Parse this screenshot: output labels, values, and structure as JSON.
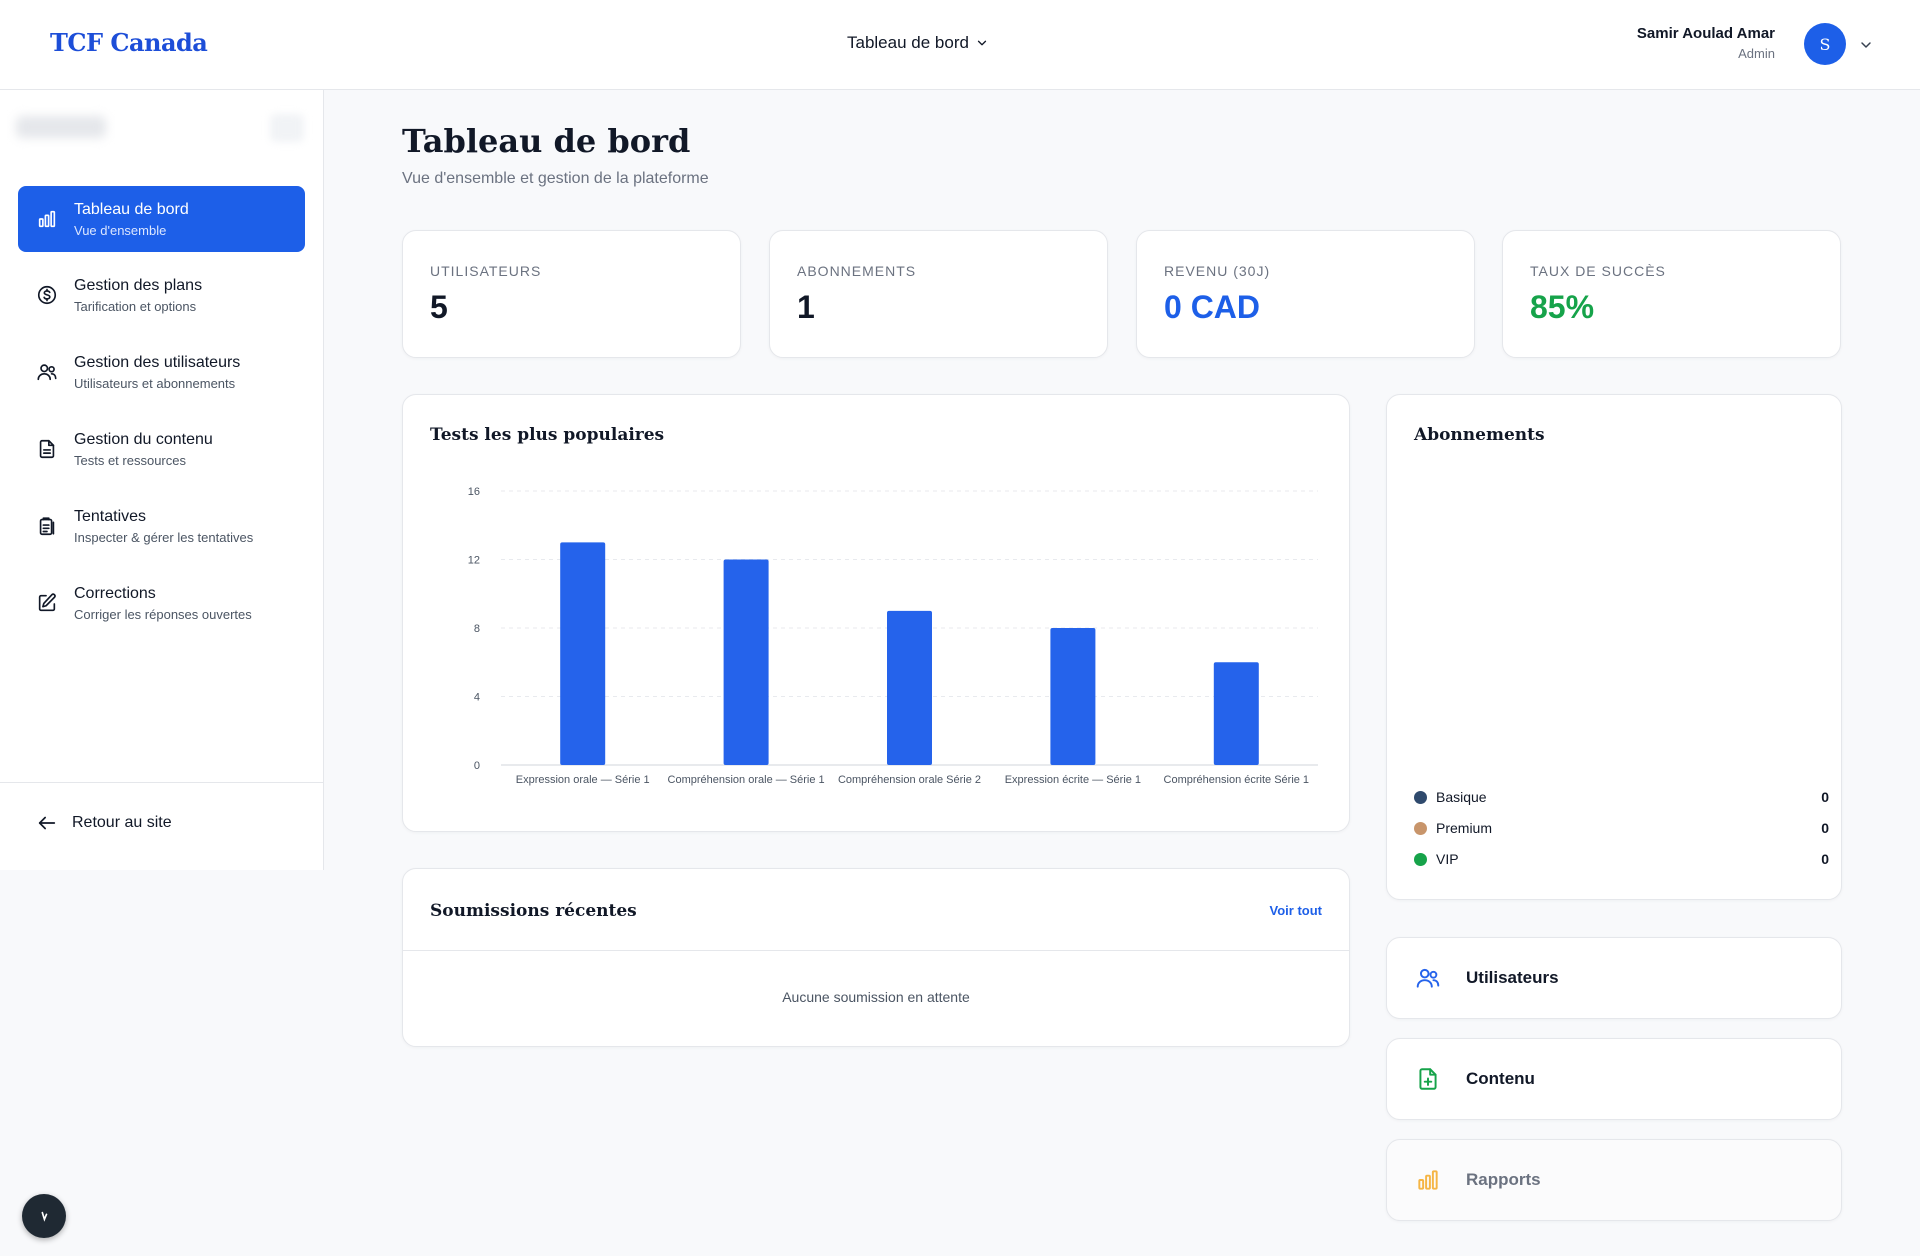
{
  "header": {
    "brand": "TCF Canada",
    "nav_label": "Tableau de bord",
    "user_name": "Samir Aoulad Amar",
    "user_role": "Admin",
    "avatar_initial": "S"
  },
  "sidebar": {
    "items": [
      {
        "title": "Tableau de bord",
        "subtitle": "Vue d'ensemble",
        "icon": "bar-chart-icon",
        "active": true
      },
      {
        "title": "Gestion des plans",
        "subtitle": "Tarification et options",
        "icon": "dollar-circle-icon",
        "active": false
      },
      {
        "title": "Gestion des utilisateurs",
        "subtitle": "Utilisateurs et abonnements",
        "icon": "users-icon",
        "active": false
      },
      {
        "title": "Gestion du contenu",
        "subtitle": "Tests et ressources",
        "icon": "document-icon",
        "active": false
      },
      {
        "title": "Tentatives",
        "subtitle": "Inspecter & gérer les tentatives",
        "icon": "clipboard-icon",
        "active": false
      },
      {
        "title": "Corrections",
        "subtitle": "Corriger les réponses ouvertes",
        "icon": "edit-icon",
        "active": false
      }
    ],
    "back_label": "Retour au site"
  },
  "page": {
    "title": "Tableau de bord",
    "subtitle": "Vue d'ensemble et gestion de la plateforme"
  },
  "stats": [
    {
      "label": "UTILISATEURS",
      "value": "5",
      "color": "#111827"
    },
    {
      "label": "ABONNEMENTS",
      "value": "1",
      "color": "#111827"
    },
    {
      "label": "REVENU (30J)",
      "value": "0 CAD",
      "color": "#1d5fe8"
    },
    {
      "label": "TAUX DE SUCCÈS",
      "value": "85%",
      "color": "#16a34a"
    }
  ],
  "popular_tests": {
    "title": "Tests les plus populaires"
  },
  "chart_data": {
    "type": "bar",
    "categories": [
      "Expression orale — Série 1",
      "Compréhension orale — Série 1",
      "Compréhension orale Série 2",
      "Expression écrite — Série 1",
      "Compréhension écrite Série 1"
    ],
    "values": [
      13,
      12,
      9,
      8,
      6
    ],
    "yticks": [
      0,
      4,
      8,
      12,
      16
    ],
    "ylim": [
      0,
      16
    ],
    "bar_color": "#2563eb",
    "grid": "dashed horizontal"
  },
  "subscriptions": {
    "title": "Abonnements",
    "legend": [
      {
        "label": "Basique",
        "value": "0",
        "color": "#2f4a6d"
      },
      {
        "label": "Premium",
        "value": "0",
        "color": "#c8956b"
      },
      {
        "label": "VIP",
        "value": "0",
        "color": "#16a34a"
      }
    ]
  },
  "submissions": {
    "title": "Soumissions récentes",
    "link": "Voir tout",
    "empty": "Aucune soumission en attente"
  },
  "quick_links": [
    {
      "label": "Utilisateurs",
      "icon": "users-icon",
      "color": "#2563eb"
    },
    {
      "label": "Contenu",
      "icon": "file-plus-icon",
      "color": "#16a34a"
    },
    {
      "label": "Rapports",
      "icon": "bar-chart-icon",
      "color": "#f5b545"
    }
  ]
}
